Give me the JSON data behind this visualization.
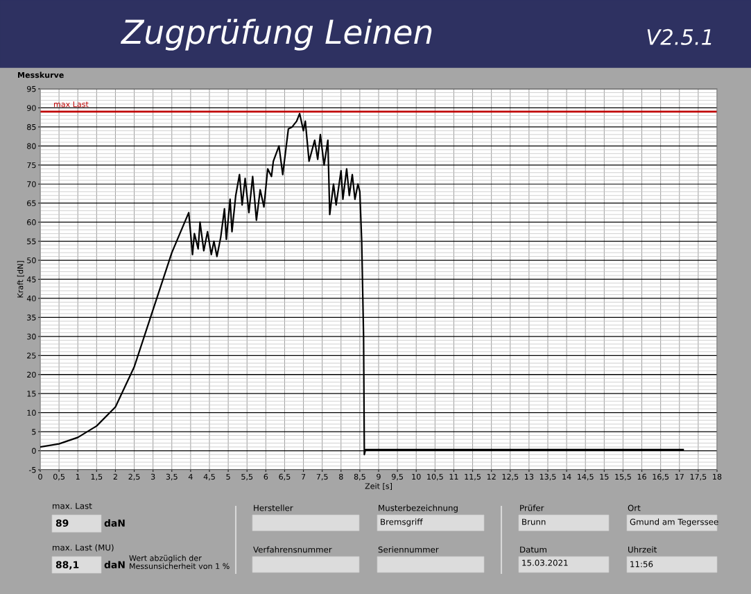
{
  "chart_data": {
    "type": "line",
    "title": "Zugprüfung Leinen",
    "subtitle": "V2.5.1",
    "xlabel": "Zeit [s]",
    "ylabel": "Kraft [dN]",
    "xlim": [
      0,
      18
    ],
    "ylim": [
      -5,
      95
    ],
    "xticks": [
      0,
      {
        "value": 0.5,
        "label": "0,5"
      },
      1,
      {
        "value": 1.5,
        "label": "1,5"
      },
      2,
      {
        "value": 2.5,
        "label": "2,5"
      },
      3,
      {
        "value": 3.5,
        "label": "3,5"
      },
      4,
      {
        "value": 4.5,
        "label": "4,5"
      },
      5,
      {
        "value": 5.5,
        "label": "5,5"
      },
      6,
      {
        "value": 6.5,
        "label": "6,5"
      },
      7,
      {
        "value": 7.5,
        "label": "7,5"
      },
      8,
      {
        "value": 8.5,
        "label": "8,5"
      },
      9,
      {
        "value": 9.5,
        "label": "9,5"
      },
      10,
      {
        "value": 10.5,
        "label": "10,5"
      },
      11,
      {
        "value": 11.5,
        "label": "11,5"
      },
      12,
      {
        "value": 12.5,
        "label": "12,5"
      },
      13,
      {
        "value": 13.5,
        "label": "13,5"
      },
      14,
      {
        "value": 14.5,
        "label": "14,5"
      },
      15,
      {
        "value": 15.5,
        "label": "15,5"
      },
      16,
      {
        "value": 16.5,
        "label": "16,5"
      },
      17,
      {
        "value": 17.5,
        "label": "17,5"
      },
      18
    ],
    "yticks": [
      -5,
      0,
      5,
      10,
      15,
      20,
      25,
      30,
      35,
      40,
      45,
      50,
      55,
      60,
      65,
      70,
      75,
      80,
      85,
      90,
      95
    ],
    "grid": true,
    "marker": "none",
    "line_style": "solid",
    "series": [
      {
        "color": "#000000",
        "x": [
          0,
          0.5,
          1,
          1.5,
          2,
          2.5,
          3,
          3.5,
          3.8,
          3.95,
          4.05,
          4.1,
          4.2,
          4.25,
          4.35,
          4.45,
          4.55,
          4.62,
          4.7,
          4.8,
          4.9,
          4.95,
          5.05,
          5.1,
          5.2,
          5.3,
          5.37,
          5.45,
          5.55,
          5.65,
          5.75,
          5.85,
          5.95,
          6.05,
          6.15,
          6.2,
          6.35,
          6.45,
          6.6,
          6.7,
          6.82,
          6.9,
          7.0,
          7.05,
          7.15,
          7.3,
          7.38,
          7.45,
          7.55,
          7.65,
          7.7,
          7.8,
          7.87,
          8.0,
          8.05,
          8.15,
          8.22,
          8.3,
          8.37,
          8.45,
          8.5,
          8.55,
          8.6,
          8.62,
          8.65,
          17.1
        ],
        "values": [
          1,
          1.8,
          3.5,
          6.5,
          11.5,
          22,
          37,
          52,
          59,
          62.5,
          51.5,
          57,
          53,
          60,
          52.5,
          57.5,
          51.5,
          55,
          51,
          56,
          63.5,
          55.5,
          66,
          57.5,
          67,
          72.5,
          64.5,
          71.5,
          62.5,
          72,
          60.5,
          68.5,
          64,
          74,
          72,
          76,
          80,
          72.5,
          84.5,
          85,
          86.5,
          88.5,
          84,
          86.5,
          76,
          81.5,
          76.5,
          83,
          75,
          81.5,
          62,
          70,
          64.5,
          73.5,
          66,
          74,
          67,
          72.5,
          66,
          70,
          68,
          55,
          30,
          -1,
          0.3,
          0.3
        ]
      }
    ],
    "ref_lines": [
      {
        "axis": "y",
        "value": 89,
        "label": "max Last",
        "color": "#c00000"
      }
    ],
    "annotations": [
      "Messkurve",
      "max. Last",
      "89",
      "daN",
      "max. Last (MU)",
      "88,1",
      "daN",
      "Wert abzüglich der\nMessunsicherheit von 1 %",
      "Hersteller",
      "Verfahrensnummer",
      "Musterbezeichnung",
      "Bremsgriff",
      "Seriennummer",
      "Prüfer",
      "Brunn",
      "Datum",
      "15.03.2021",
      "Ort",
      "Gmund am Tegerssee",
      "Uhrzeit",
      "11:56"
    ]
  }
}
